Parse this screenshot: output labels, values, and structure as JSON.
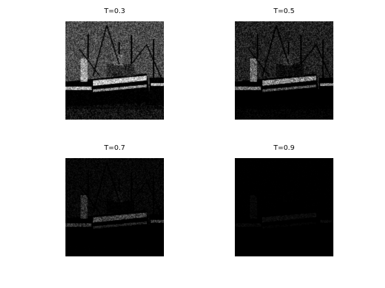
{
  "figure": {
    "panels": [
      {
        "title": "T=0.3",
        "threshold": 0.3,
        "brightness": 1.0
      },
      {
        "title": "T=0.5",
        "threshold": 0.5,
        "brightness": 0.78
      },
      {
        "title": "T=0.7",
        "threshold": 0.7,
        "brightness": 0.4
      },
      {
        "title": "T=0.9",
        "threshold": 0.9,
        "brightness": 0.08
      }
    ],
    "subject": "fishing-boats-photo",
    "colormap": "grayscale"
  }
}
